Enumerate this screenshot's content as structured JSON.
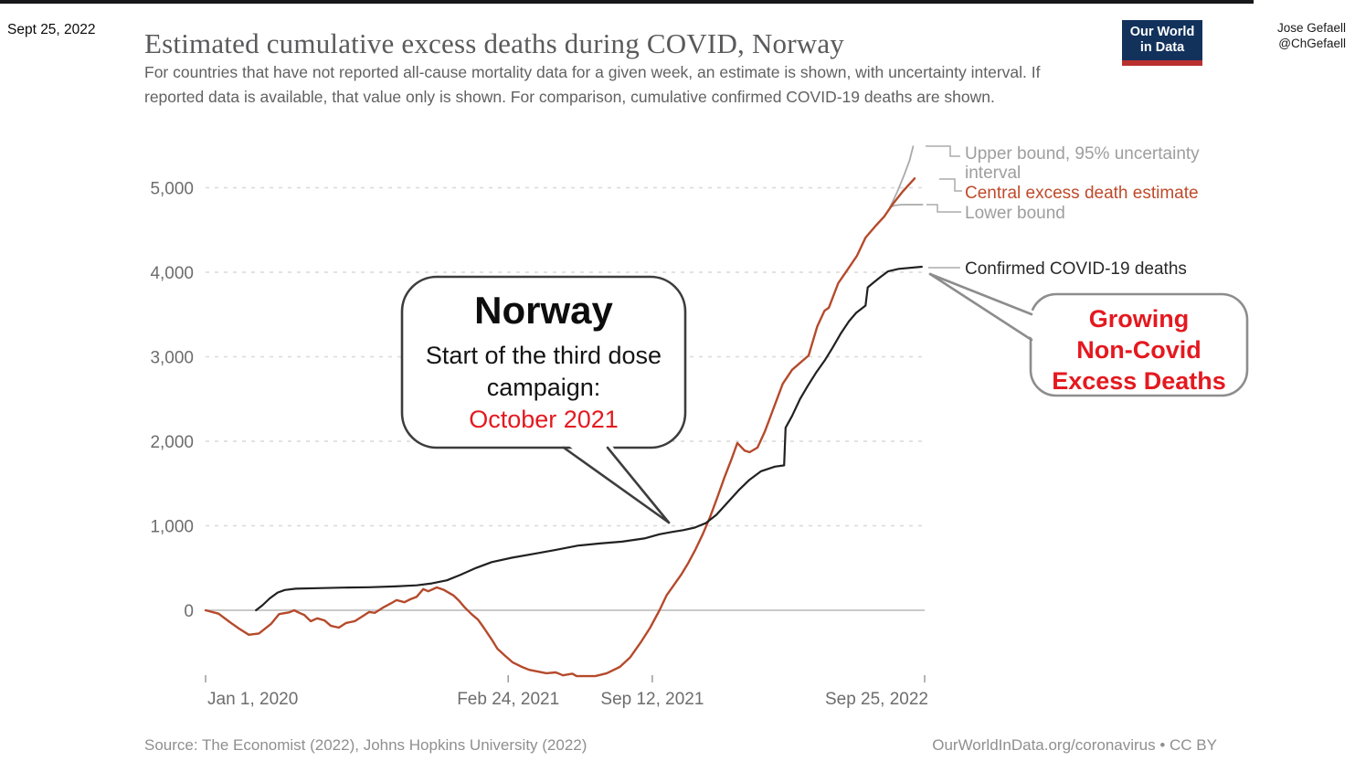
{
  "post": {
    "date": "Sept 25, 2022",
    "author_name": "Jose Gefaell",
    "author_handle": "@ChGefaell"
  },
  "header": {
    "title": "Estimated cumulative excess deaths during COVID, Norway",
    "subtitle": "For countries that have not reported all-cause mortality data for a given week, an estimate is shown, with uncertainty interval. If reported data is available, that value only is shown. For comparison, cumulative confirmed COVID-19 deaths are shown.",
    "logo": {
      "line1": "Our World",
      "line2": "in Data",
      "bg_color": "#12325c",
      "accent_color": "#b9302e"
    }
  },
  "legend": {
    "upper": "Upper bound, 95% uncertainty interval",
    "central": "Central excess death estimate",
    "lower": "Lower bound",
    "confirmed": "Confirmed COVID-19 deaths"
  },
  "annotations": {
    "norway_bubble": {
      "title": "Norway",
      "line1": "Start of the third dose",
      "line2": "campaign:",
      "highlight": "October 2021",
      "highlight_color": "#e4191f"
    },
    "growing_bubble": {
      "lines": [
        "Growing",
        "Non-Covid",
        "Excess Deaths"
      ],
      "color": "#e4191f"
    }
  },
  "footer": {
    "source": "Source: The Economist (2022), Johns Hopkins University (2022)",
    "credit": "OurWorldInData.org/coronavirus • CC BY"
  },
  "chart_data": {
    "type": "line",
    "title": "Estimated cumulative excess deaths during COVID, Norway",
    "x_axis": {
      "domain": [
        "2020-01-01",
        "2022-09-25"
      ],
      "ticks": [
        {
          "label": "Jan 1, 2020",
          "date": "2020-01-01"
        },
        {
          "label": "Feb 24, 2021",
          "date": "2021-02-24"
        },
        {
          "label": "Sep 12, 2021",
          "date": "2021-09-12"
        },
        {
          "label": "Sep 25, 2022",
          "date": "2022-09-25"
        }
      ]
    },
    "y_axis": {
      "ticks": [
        0,
        1000,
        2000,
        3000,
        4000,
        5000
      ],
      "tick_labels": [
        "0",
        "1,000",
        "2,000",
        "3,000",
        "4,000",
        "5,000"
      ],
      "ylim": [
        -900,
        5600
      ],
      "gridlines": "dashed"
    },
    "legend_position": "right",
    "series": [
      {
        "id": "upper-bound",
        "name": "Upper bound, 95% uncertainty interval",
        "color": "#a9a9a9",
        "width": 1.8,
        "points": [
          [
            "2022-08-08",
            4770
          ],
          [
            "2022-08-18",
            4950
          ],
          [
            "2022-08-28",
            5160
          ],
          [
            "2022-09-04",
            5320
          ],
          [
            "2022-09-09",
            5490
          ]
        ]
      },
      {
        "id": "lower-bound",
        "name": "Lower bound",
        "color": "#a9a9a9",
        "width": 1.8,
        "points": [
          [
            "2022-08-08",
            4770
          ],
          [
            "2022-08-14",
            4790
          ],
          [
            "2022-08-24",
            4800
          ],
          [
            "2022-09-22",
            4800
          ]
        ]
      },
      {
        "id": "central-estimate",
        "name": "Central excess death estimate",
        "color": "#b54a2c",
        "width": 2.4,
        "points": [
          [
            "2020-01-01",
            0
          ],
          [
            "2020-01-19",
            -40
          ],
          [
            "2020-02-02",
            -130
          ],
          [
            "2020-02-16",
            -215
          ],
          [
            "2020-03-01",
            -290
          ],
          [
            "2020-03-15",
            -275
          ],
          [
            "2020-04-01",
            -160
          ],
          [
            "2020-04-12",
            -45
          ],
          [
            "2020-04-26",
            -25
          ],
          [
            "2020-05-03",
            0
          ],
          [
            "2020-05-10",
            -30
          ],
          [
            "2020-05-17",
            -55
          ],
          [
            "2020-05-26",
            -130
          ],
          [
            "2020-06-04",
            -95
          ],
          [
            "2020-06-14",
            -120
          ],
          [
            "2020-06-23",
            -185
          ],
          [
            "2020-07-04",
            -205
          ],
          [
            "2020-07-14",
            -150
          ],
          [
            "2020-07-26",
            -130
          ],
          [
            "2020-08-07",
            -65
          ],
          [
            "2020-08-15",
            -20
          ],
          [
            "2020-08-23",
            -30
          ],
          [
            "2020-09-03",
            30
          ],
          [
            "2020-09-15",
            85
          ],
          [
            "2020-09-22",
            120
          ],
          [
            "2020-10-03",
            95
          ],
          [
            "2020-10-11",
            130
          ],
          [
            "2020-10-20",
            160
          ],
          [
            "2020-10-29",
            250
          ],
          [
            "2020-11-05",
            225
          ],
          [
            "2020-11-17",
            270
          ],
          [
            "2020-11-27",
            240
          ],
          [
            "2020-12-10",
            175
          ],
          [
            "2020-12-18",
            110
          ],
          [
            "2020-12-26",
            30
          ],
          [
            "2021-01-04",
            -45
          ],
          [
            "2021-01-13",
            -110
          ],
          [
            "2021-01-21",
            -205
          ],
          [
            "2021-02-01",
            -345
          ],
          [
            "2021-02-09",
            -455
          ],
          [
            "2021-02-20",
            -540
          ],
          [
            "2021-03-02",
            -615
          ],
          [
            "2021-03-15",
            -670
          ],
          [
            "2021-03-25",
            -705
          ],
          [
            "2021-04-06",
            -725
          ],
          [
            "2021-04-18",
            -745
          ],
          [
            "2021-05-01",
            -735
          ],
          [
            "2021-05-11",
            -770
          ],
          [
            "2021-05-24",
            -750
          ],
          [
            "2021-05-30",
            -780
          ],
          [
            "2021-06-25",
            -780
          ],
          [
            "2021-07-11",
            -745
          ],
          [
            "2021-07-29",
            -670
          ],
          [
            "2021-08-12",
            -560
          ],
          [
            "2021-08-27",
            -380
          ],
          [
            "2021-09-09",
            -205
          ],
          [
            "2021-09-22",
            0
          ],
          [
            "2021-10-02",
            180
          ],
          [
            "2021-10-12",
            300
          ],
          [
            "2021-10-22",
            420
          ],
          [
            "2021-11-01",
            560
          ],
          [
            "2021-11-11",
            720
          ],
          [
            "2021-11-21",
            900
          ],
          [
            "2021-12-01",
            1100
          ],
          [
            "2021-12-11",
            1330
          ],
          [
            "2021-12-21",
            1570
          ],
          [
            "2021-12-31",
            1790
          ],
          [
            "2022-01-08",
            1980
          ],
          [
            "2022-01-18",
            1890
          ],
          [
            "2022-01-25",
            1870
          ],
          [
            "2022-02-05",
            1925
          ],
          [
            "2022-02-15",
            2110
          ],
          [
            "2022-02-22",
            2270
          ],
          [
            "2022-03-01",
            2430
          ],
          [
            "2022-03-12",
            2680
          ],
          [
            "2022-03-25",
            2845
          ],
          [
            "2022-04-17",
            3015
          ],
          [
            "2022-04-29",
            3360
          ],
          [
            "2022-05-09",
            3545
          ],
          [
            "2022-05-15",
            3580
          ],
          [
            "2022-05-28",
            3870
          ],
          [
            "2022-06-10",
            4030
          ],
          [
            "2022-06-23",
            4195
          ],
          [
            "2022-07-05",
            4410
          ],
          [
            "2022-07-18",
            4540
          ],
          [
            "2022-07-31",
            4660
          ],
          [
            "2022-08-12",
            4810
          ],
          [
            "2022-08-25",
            4950
          ],
          [
            "2022-09-11",
            5110
          ]
        ]
      },
      {
        "id": "confirmed-deaths",
        "name": "Confirmed COVID-19 deaths",
        "color": "#212121",
        "width": 2.2,
        "points": [
          [
            "2020-03-11",
            0
          ],
          [
            "2020-03-20",
            60
          ],
          [
            "2020-03-30",
            140
          ],
          [
            "2020-04-10",
            210
          ],
          [
            "2020-04-20",
            240
          ],
          [
            "2020-05-05",
            255
          ],
          [
            "2020-06-05",
            262
          ],
          [
            "2020-07-10",
            268
          ],
          [
            "2020-08-15",
            272
          ],
          [
            "2020-09-20",
            282
          ],
          [
            "2020-10-20",
            295
          ],
          [
            "2020-11-10",
            318
          ],
          [
            "2020-12-01",
            355
          ],
          [
            "2020-12-20",
            420
          ],
          [
            "2021-01-10",
            500
          ],
          [
            "2021-02-01",
            570
          ],
          [
            "2021-03-01",
            622
          ],
          [
            "2021-04-01",
            668
          ],
          [
            "2021-05-01",
            715
          ],
          [
            "2021-06-01",
            765
          ],
          [
            "2021-07-01",
            790
          ],
          [
            "2021-08-01",
            812
          ],
          [
            "2021-09-01",
            850
          ],
          [
            "2021-09-22",
            900
          ],
          [
            "2021-10-10",
            928
          ],
          [
            "2021-10-25",
            948
          ],
          [
            "2021-11-10",
            978
          ],
          [
            "2021-11-25",
            1030
          ],
          [
            "2021-12-10",
            1130
          ],
          [
            "2021-12-25",
            1270
          ],
          [
            "2022-01-10",
            1420
          ],
          [
            "2022-01-25",
            1545
          ],
          [
            "2022-02-10",
            1645
          ],
          [
            "2022-03-01",
            1700
          ],
          [
            "2022-03-14",
            1715
          ],
          [
            "2022-03-16",
            2160
          ],
          [
            "2022-03-25",
            2300
          ],
          [
            "2022-04-05",
            2500
          ],
          [
            "2022-04-15",
            2645
          ],
          [
            "2022-04-28",
            2820
          ],
          [
            "2022-05-10",
            2965
          ],
          [
            "2022-05-20",
            3105
          ],
          [
            "2022-06-01",
            3280
          ],
          [
            "2022-06-12",
            3420
          ],
          [
            "2022-06-22",
            3520
          ],
          [
            "2022-07-05",
            3605
          ],
          [
            "2022-07-08",
            3820
          ],
          [
            "2022-07-15",
            3870
          ],
          [
            "2022-07-25",
            3940
          ],
          [
            "2022-08-05",
            4010
          ],
          [
            "2022-08-20",
            4040
          ],
          [
            "2022-09-21",
            4065
          ]
        ]
      }
    ]
  }
}
